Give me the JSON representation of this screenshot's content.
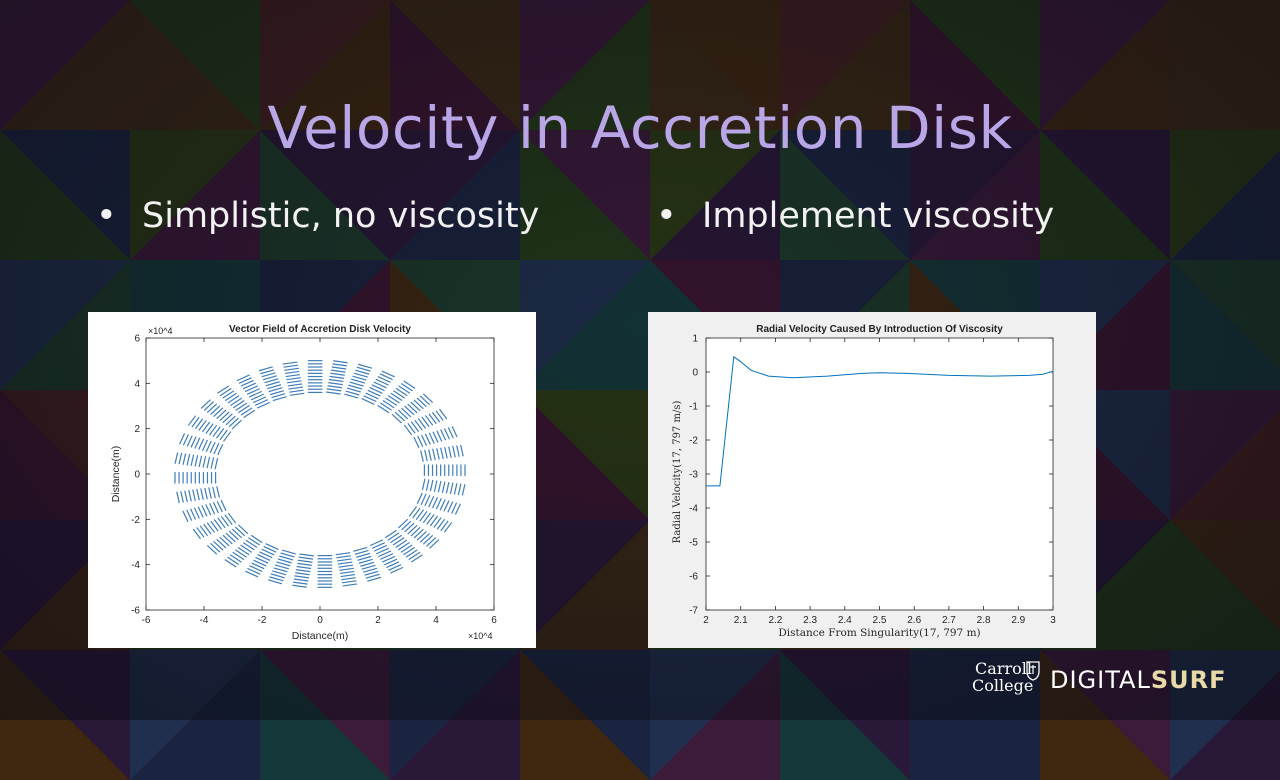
{
  "slide": {
    "title": "Velocity in Accretion Disk",
    "bullets": [
      {
        "marker": "•",
        "text": "Simplistic, no viscosity"
      },
      {
        "marker": "•",
        "text": "Implement viscosity"
      }
    ]
  },
  "logo": {
    "line1": "Carroll",
    "line2": "College",
    "brand_light": "DIGITAL",
    "brand_bold": "SURF"
  },
  "colors": {
    "title": "#b9a6e6",
    "plot_line": "#0072bd",
    "quiver": "#2a6fb0"
  },
  "chart_data": [
    {
      "type": "scatter",
      "subtype": "quiver",
      "title": "Vector Field of Accretion Disk Velocity",
      "xlabel": "Distance(m)",
      "ylabel": "Distance(m)",
      "x_exponent": "×10^4",
      "y_exponent": "×10^4",
      "xlim": [
        -6,
        6
      ],
      "ylim": [
        -6,
        6
      ],
      "x_ticks": [
        -6,
        -4,
        -2,
        0,
        2,
        4,
        6
      ],
      "y_ticks": [
        -6,
        -4,
        -2,
        0,
        2,
        4,
        6
      ],
      "ring_inner_radius": 3.6,
      "ring_outer_radius": 5.0,
      "arrow_bundles": 36,
      "grid": false
    },
    {
      "type": "line",
      "title": "Radial Velocity Caused By Introduction Of Viscosity",
      "xlabel": "Distance From Singularity(17, 797 m)",
      "ylabel": "Radial Velocity(17, 797 m/s)",
      "xlim": [
        2,
        3
      ],
      "ylim": [
        -7,
        1
      ],
      "x_ticks": [
        "2",
        "2.1",
        "2.2",
        "2.3",
        "2.4",
        "2.5",
        "2.6",
        "2.7",
        "2.8",
        "2.9",
        "3"
      ],
      "y_ticks": [
        "1",
        "0",
        "-1",
        "-2",
        "-3",
        "-4",
        "-5",
        "-6",
        "-7"
      ],
      "grid": false,
      "series": [
        {
          "x": [
            2.0,
            2.04,
            2.08,
            2.1,
            2.13,
            2.18,
            2.25,
            2.35,
            2.45,
            2.5,
            2.58,
            2.7,
            2.82,
            2.93,
            2.97,
            3.0
          ],
          "y": [
            -3.35,
            -3.35,
            0.45,
            0.3,
            0.05,
            -0.12,
            -0.17,
            -0.12,
            -0.04,
            -0.02,
            -0.04,
            -0.1,
            -0.12,
            -0.1,
            -0.07,
            0.02
          ]
        }
      ]
    }
  ]
}
